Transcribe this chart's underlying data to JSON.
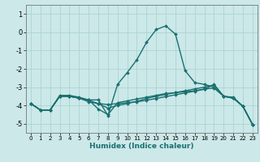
{
  "title": "",
  "xlabel": "Humidex (Indice chaleur)",
  "ylabel": "",
  "xlim": [
    -0.5,
    23.5
  ],
  "ylim": [
    -5.5,
    1.5
  ],
  "yticks": [
    1,
    0,
    -1,
    -2,
    -3,
    -4,
    -5
  ],
  "xticks": [
    0,
    1,
    2,
    3,
    4,
    5,
    6,
    7,
    8,
    9,
    10,
    11,
    12,
    13,
    14,
    15,
    16,
    17,
    18,
    19,
    20,
    21,
    22,
    23
  ],
  "background_color": "#cce8e8",
  "grid_color": "#aad4d4",
  "line_color": "#1a7070",
  "line_width": 1.0,
  "marker": "D",
  "marker_size": 2.0,
  "series": [
    {
      "x": [
        0,
        1,
        2,
        3,
        4,
        5,
        6,
        7,
        8,
        9,
        10,
        11,
        12,
        13,
        14,
        15,
        16,
        17,
        18,
        19,
        20,
        21,
        22,
        23
      ],
      "y": [
        -3.9,
        -4.25,
        -4.25,
        -3.45,
        -3.45,
        -3.55,
        -3.7,
        -3.7,
        -4.55,
        -2.85,
        -2.2,
        -1.5,
        -0.55,
        0.15,
        0.35,
        -0.1,
        -2.1,
        -2.75,
        -2.85,
        -3.0,
        -3.5,
        -3.6,
        -4.05,
        -5.05
      ]
    },
    {
      "x": [
        0,
        1,
        2,
        3,
        4,
        5,
        6,
        7,
        8,
        9,
        10,
        11,
        12,
        13,
        14,
        15,
        16,
        17,
        18,
        19,
        20,
        21,
        22,
        23
      ],
      "y": [
        -3.9,
        -4.25,
        -4.25,
        -3.5,
        -3.5,
        -3.6,
        -3.7,
        -4.2,
        -4.5,
        -3.85,
        -3.75,
        -3.65,
        -3.55,
        -3.45,
        -3.35,
        -3.3,
        -3.25,
        -3.2,
        -3.1,
        -3.05,
        -3.5,
        -3.6,
        -4.05,
        -5.05
      ]
    },
    {
      "x": [
        0,
        1,
        2,
        3,
        4,
        5,
        6,
        7,
        8,
        9,
        10,
        11,
        12,
        13,
        14,
        15,
        16,
        17,
        18,
        19,
        20,
        21,
        22,
        23
      ],
      "y": [
        -3.9,
        -4.25,
        -4.25,
        -3.5,
        -3.5,
        -3.6,
        -3.8,
        -3.9,
        -4.15,
        -4.0,
        -3.9,
        -3.78,
        -3.62,
        -3.5,
        -3.4,
        -3.3,
        -3.2,
        -3.1,
        -3.0,
        -2.88,
        -3.5,
        -3.6,
        -4.05,
        -5.05
      ]
    },
    {
      "x": [
        0,
        1,
        2,
        3,
        4,
        5,
        6,
        7,
        8,
        9,
        10,
        11,
        12,
        13,
        14,
        15,
        16,
        17,
        18,
        19,
        20,
        21,
        22,
        23
      ],
      "y": [
        -3.9,
        -4.25,
        -4.25,
        -3.5,
        -3.5,
        -3.6,
        -3.72,
        -3.9,
        -3.95,
        -3.9,
        -3.85,
        -3.8,
        -3.72,
        -3.62,
        -3.52,
        -3.42,
        -3.32,
        -3.22,
        -3.12,
        -2.85,
        -3.5,
        -3.55,
        -4.05,
        -5.05
      ]
    }
  ]
}
